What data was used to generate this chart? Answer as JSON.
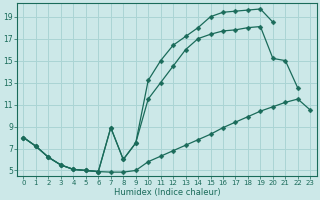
{
  "xlabel": "Humidex (Indice chaleur)",
  "xlim": [
    -0.5,
    23.5
  ],
  "ylim": [
    4.5,
    20.2
  ],
  "xticks": [
    0,
    1,
    2,
    3,
    4,
    5,
    6,
    7,
    8,
    9,
    10,
    11,
    12,
    13,
    14,
    15,
    16,
    17,
    18,
    19,
    20,
    21,
    22,
    23
  ],
  "yticks": [
    5,
    7,
    9,
    11,
    13,
    15,
    17,
    19
  ],
  "bg_color": "#cce8e8",
  "grid_color": "#aad4d4",
  "line_color": "#1a6b5a",
  "line1_x": [
    0,
    1,
    2,
    3,
    4,
    5,
    6,
    7,
    8,
    9,
    10,
    11,
    12,
    13,
    14,
    15,
    16,
    17,
    18,
    19,
    20,
    21,
    22,
    23
  ],
  "line1_y": [
    8.0,
    7.2,
    6.2,
    5.5,
    5.1,
    5.0,
    4.9,
    4.85,
    4.85,
    5.0,
    5.8,
    6.3,
    6.8,
    7.3,
    7.8,
    8.3,
    8.9,
    9.4,
    9.9,
    10.4,
    10.8,
    11.2,
    11.5,
    10.5
  ],
  "line2_x": [
    0,
    1,
    2,
    3,
    4,
    5,
    6,
    7,
    8,
    9,
    10,
    11,
    12,
    13,
    14,
    15,
    16,
    17,
    18,
    19,
    20
  ],
  "line2_y": [
    8.0,
    7.2,
    6.2,
    5.5,
    5.1,
    5.0,
    4.9,
    8.9,
    6.0,
    7.5,
    13.2,
    15.0,
    16.4,
    17.2,
    18.0,
    19.0,
    19.4,
    19.5,
    19.6,
    19.7,
    18.5
  ],
  "line3_x": [
    0,
    1,
    2,
    3,
    4,
    5,
    6,
    7,
    8,
    9,
    10,
    11,
    12,
    13,
    14,
    15,
    16,
    17,
    18,
    19,
    20,
    21,
    22
  ],
  "line3_y": [
    8.0,
    7.2,
    6.2,
    5.5,
    5.1,
    5.0,
    4.9,
    8.9,
    6.0,
    7.5,
    11.5,
    13.0,
    14.5,
    16.0,
    17.0,
    17.4,
    17.7,
    17.8,
    18.0,
    18.1,
    15.2,
    15.0,
    12.5
  ]
}
